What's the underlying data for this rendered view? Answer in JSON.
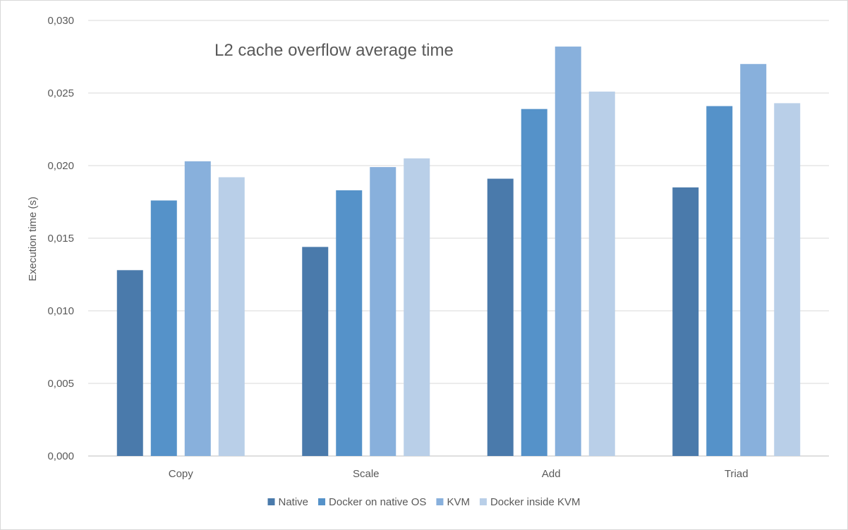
{
  "chart_data": {
    "type": "bar",
    "title": "L2 cache overflow average time",
    "xlabel": "",
    "ylabel": "Execution time (s)",
    "ylim": [
      0,
      0.03
    ],
    "ytick_step": 0.005,
    "ytick_labels": [
      "0,000",
      "0,005",
      "0,010",
      "0,015",
      "0,020",
      "0,025",
      "0,030"
    ],
    "grid": true,
    "legend_position": "bottom",
    "categories": [
      "Copy",
      "Scale",
      "Add",
      "Triad"
    ],
    "series": [
      {
        "name": "Native",
        "color": "#4a7aab",
        "values": [
          0.0128,
          0.0144,
          0.0191,
          0.0185
        ]
      },
      {
        "name": "Docker on native OS",
        "color": "#5592c9",
        "values": [
          0.0176,
          0.0183,
          0.0239,
          0.0241
        ]
      },
      {
        "name": "KVM",
        "color": "#88b0dc",
        "values": [
          0.0203,
          0.0199,
          0.0282,
          0.027
        ]
      },
      {
        "name": "Docker inside KVM",
        "color": "#b9cfe8",
        "values": [
          0.0192,
          0.0205,
          0.0251,
          0.0243
        ]
      }
    ]
  }
}
